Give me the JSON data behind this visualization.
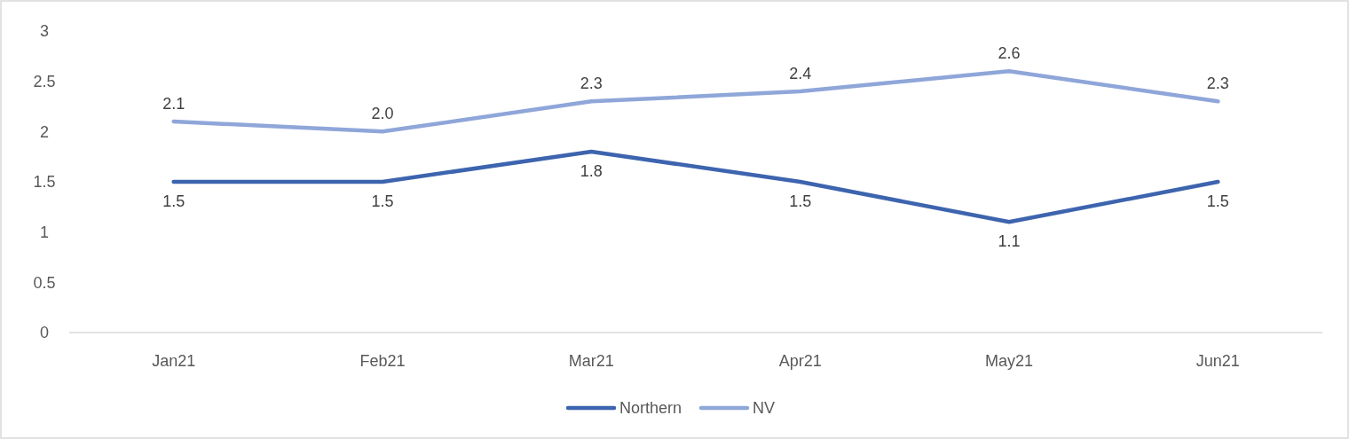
{
  "chart_data": {
    "type": "line",
    "categories": [
      "Jan21",
      "Feb21",
      "Mar21",
      "Apr21",
      "May21",
      "Jun21"
    ],
    "series": [
      {
        "name": "Northern",
        "color": "#3d64ae",
        "values": [
          1.5,
          1.5,
          1.8,
          1.5,
          1.1,
          1.5
        ],
        "value_labels": [
          "1.5",
          "1.5",
          "1.8",
          "1.5",
          "1.1",
          "1.5"
        ]
      },
      {
        "name": "NV",
        "color": "#8fa6d9",
        "values": [
          2.1,
          2.0,
          2.3,
          2.4,
          2.6,
          2.3
        ],
        "value_labels": [
          "2.1",
          "2.0",
          "2.3",
          "2.4",
          "2.6",
          "2.3"
        ]
      }
    ],
    "ylim": [
      0,
      3
    ],
    "yticks": [
      0,
      0.5,
      1,
      1.5,
      2,
      2.5,
      3
    ],
    "grid": false,
    "legend": "bottom",
    "marker": "none",
    "line_style": "solid"
  }
}
